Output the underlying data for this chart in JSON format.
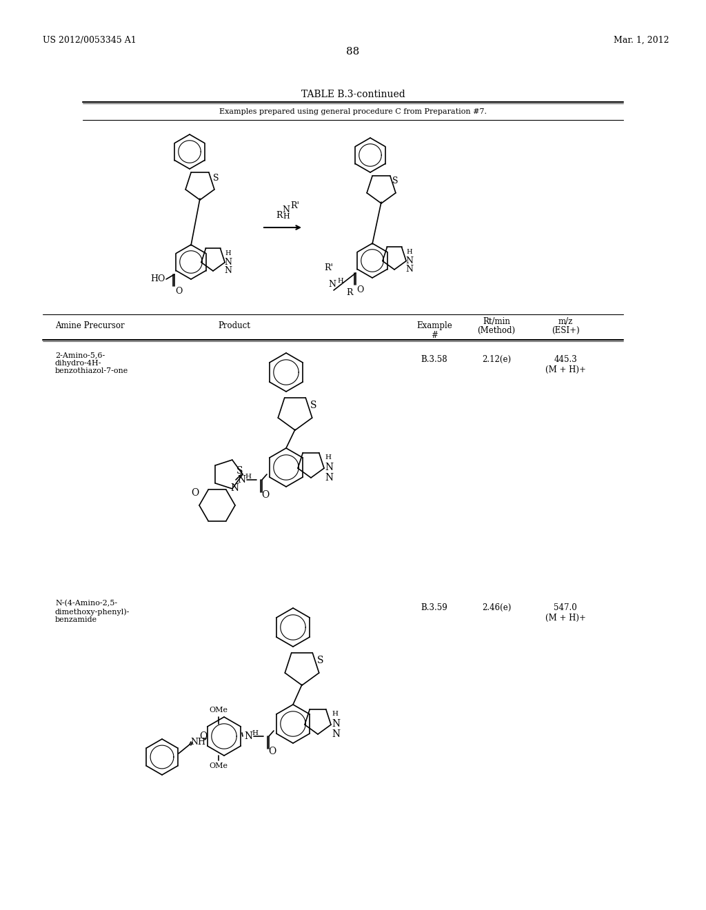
{
  "page_number": "88",
  "patent_number": "US 2012/0053345 A1",
  "patent_date": "Mar. 1, 2012",
  "table_title": "TABLE B.3-continued",
  "table_subtitle": "Examples prepared using general procedure C from Preparation #7.",
  "col_headers": [
    "Amine Precursor",
    "Product",
    "Example\n#",
    "Rt/min\n(Method)",
    "m/z\n(ESI+)"
  ],
  "rows": [
    {
      "amine": "2-Amino-5,6-\ndihydro-4H-\nbenzothiazol-7-one",
      "example": "B.3.58",
      "rt": "2.12(e)",
      "mz": "445.3\n(M + H)+"
    },
    {
      "amine": "N-(4-Amino-2,5-\ndimethoxy-phenyl)-\nbenzamide",
      "example": "B.3.59",
      "rt": "2.46(e)",
      "mz": "547.0\n(M + H)+"
    }
  ],
  "bg_color": "#ffffff",
  "text_color": "#000000",
  "line_color": "#000000"
}
